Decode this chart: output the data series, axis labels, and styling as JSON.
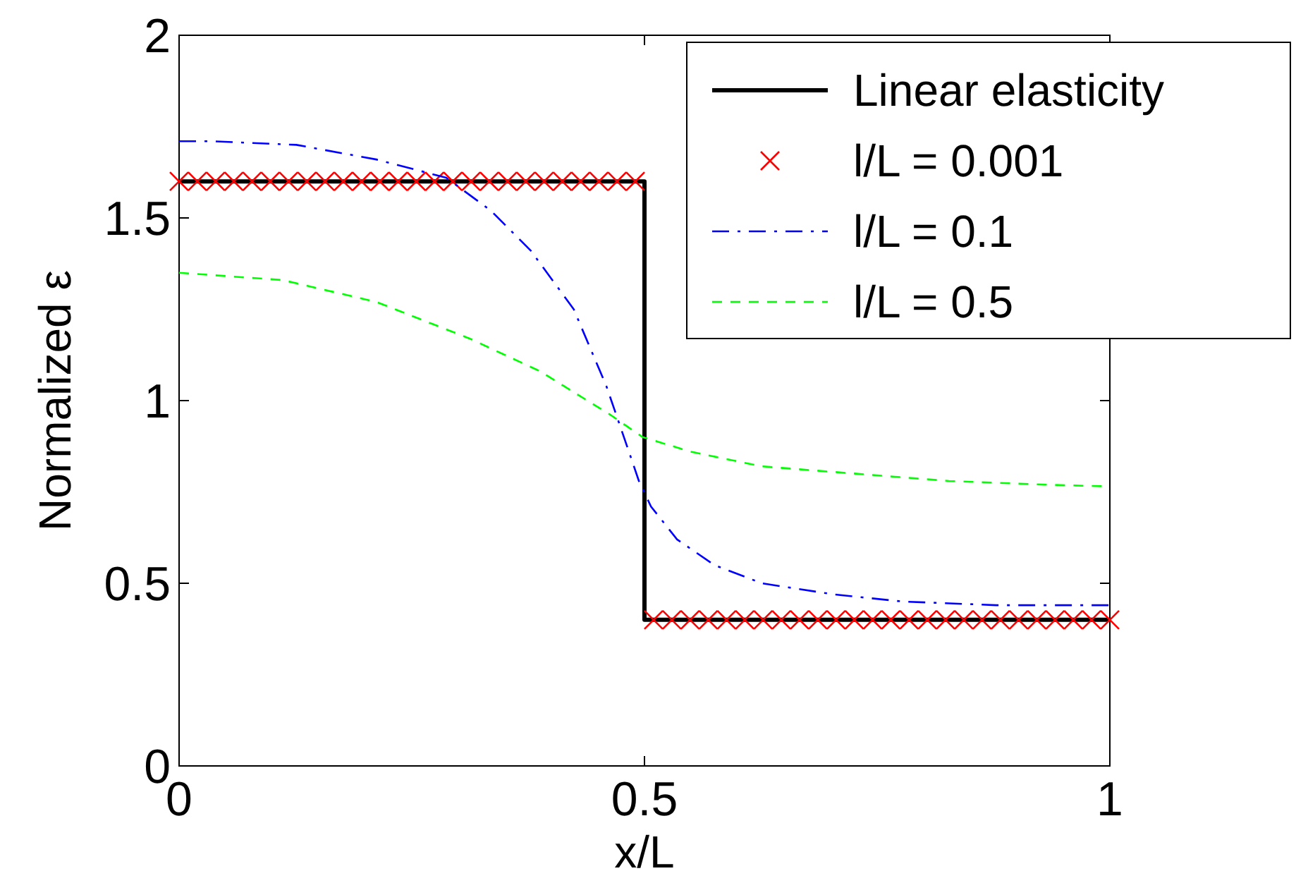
{
  "chart_data": {
    "type": "line",
    "xlabel": "x/L",
    "ylabel": "Normalized ε",
    "xlim": [
      0,
      1
    ],
    "xticks": [
      0,
      0.5,
      1
    ],
    "ylim": [
      0,
      2
    ],
    "yticks": [
      0,
      0.5,
      1,
      1.5,
      2
    ],
    "grid": false,
    "legend": "top right",
    "series": [
      {
        "name": "Linear elasticity",
        "color": "#000000",
        "line_style": "solid",
        "marker": "none",
        "x": [
          0,
          0.5,
          0.5,
          1
        ],
        "values": [
          1.6,
          1.6,
          0.4,
          0.4
        ]
      },
      {
        "name": "l/L = 0.001",
        "type": "scatter",
        "color": "#ff0000",
        "marker": "cross",
        "x": [
          0,
          0.0196,
          0.0392,
          0.0588,
          0.0784,
          0.098,
          0.1176,
          0.1373,
          0.1569,
          0.1765,
          0.1961,
          0.2157,
          0.2353,
          0.2549,
          0.2745,
          0.2941,
          0.3137,
          0.3333,
          0.3529,
          0.3725,
          0.3922,
          0.4118,
          0.4314,
          0.451,
          0.4706,
          0.4902,
          0.5098,
          0.5294,
          0.549,
          0.5686,
          0.5882,
          0.6078,
          0.6275,
          0.6471,
          0.6667,
          0.6863,
          0.7059,
          0.7255,
          0.7451,
          0.7647,
          0.7843,
          0.8039,
          0.8235,
          0.8431,
          0.8627,
          0.8824,
          0.902,
          0.9216,
          0.9412,
          0.9608,
          0.9804,
          1
        ],
        "values": [
          1.6,
          1.6,
          1.6,
          1.6,
          1.6,
          1.6,
          1.6,
          1.6,
          1.6,
          1.6,
          1.6,
          1.6,
          1.6,
          1.6,
          1.6,
          1.6,
          1.6,
          1.6,
          1.6,
          1.6,
          1.6,
          1.6,
          1.6,
          1.6,
          1.6,
          1.6,
          0.4,
          0.4,
          0.4,
          0.4,
          0.4,
          0.4,
          0.4,
          0.4,
          0.4,
          0.4,
          0.4,
          0.4,
          0.4,
          0.4,
          0.4,
          0.4,
          0.4,
          0.4,
          0.4,
          0.4,
          0.4,
          0.4,
          0.4,
          0.4,
          0.4,
          0.4
        ]
      },
      {
        "name": "l/L = 0.1",
        "color": "#0000ff",
        "line_style": "dashdot",
        "marker": "none",
        "x": [
          0,
          0.035,
          0.126,
          0.212,
          0.287,
          0.335,
          0.378,
          0.424,
          0.459,
          0.486,
          0.494,
          0.507,
          0.535,
          0.575,
          0.626,
          0.702,
          0.777,
          0.878,
          1
        ],
        "values": [
          1.71,
          1.71,
          1.7,
          1.66,
          1.61,
          1.52,
          1.41,
          1.25,
          1.04,
          0.84,
          0.78,
          0.71,
          0.62,
          0.55,
          0.5,
          0.47,
          0.45,
          0.44,
          0.44
        ]
      },
      {
        "name": "l/L = 0.5",
        "color": "#00ff00",
        "line_style": "dashed",
        "marker": "none",
        "x": [
          0,
          0.111,
          0.212,
          0.312,
          0.388,
          0.464,
          0.498,
          0.55,
          0.626,
          0.727,
          0.827,
          0.929,
          1
        ],
        "values": [
          1.35,
          1.33,
          1.27,
          1.17,
          1.08,
          0.96,
          0.9,
          0.86,
          0.82,
          0.8,
          0.78,
          0.77,
          0.765
        ]
      }
    ]
  }
}
